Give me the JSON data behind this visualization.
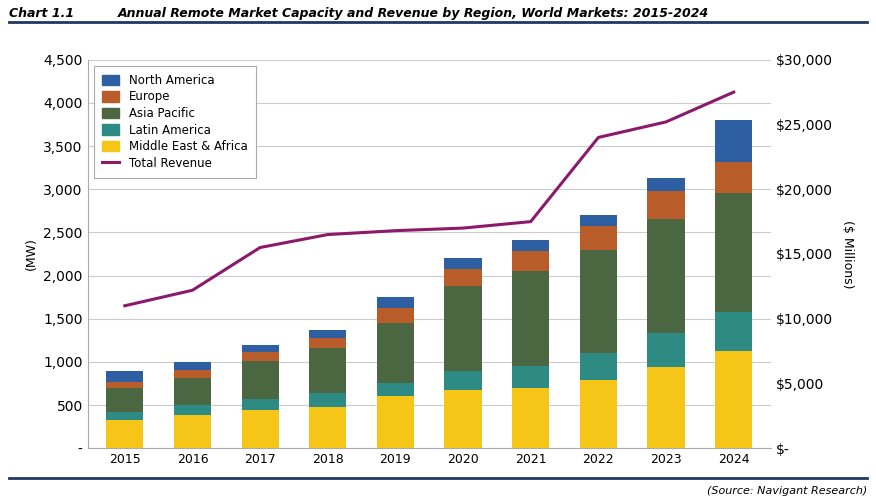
{
  "years": [
    2015,
    2016,
    2017,
    2018,
    2019,
    2020,
    2021,
    2022,
    2023,
    2024
  ],
  "middle_east_africa": [
    330,
    380,
    440,
    480,
    600,
    680,
    700,
    790,
    940,
    1130
  ],
  "latin_america": [
    95,
    115,
    135,
    155,
    155,
    220,
    250,
    310,
    390,
    450
  ],
  "asia_pacific": [
    270,
    320,
    430,
    530,
    700,
    980,
    1100,
    1200,
    1330,
    1380
  ],
  "europe": [
    75,
    90,
    105,
    115,
    165,
    200,
    230,
    270,
    320,
    360
  ],
  "north_america": [
    130,
    95,
    90,
    90,
    130,
    120,
    130,
    130,
    150,
    480
  ],
  "total_revenue": [
    11000,
    12200,
    15500,
    16500,
    16800,
    17000,
    17500,
    24000,
    25200,
    27500
  ],
  "colors": {
    "middle_east_africa": "#F5C518",
    "latin_america": "#2E8B84",
    "asia_pacific": "#4A6741",
    "europe": "#B85C2A",
    "north_america": "#2E5FA3",
    "total_revenue": "#8B1A6B"
  },
  "title_label": "Chart 1.1",
  "title_text": "Annual Remote Market Capacity and Revenue by Region, World Markets: 2015-2024",
  "ylabel_left": "(MW)",
  "ylabel_right": "($ Millions)",
  "ylim_left": [
    0,
    4500
  ],
  "ylim_right": [
    0,
    30000
  ],
  "yticks_left": [
    0,
    500,
    1000,
    1500,
    2000,
    2500,
    3000,
    3500,
    4000,
    4500
  ],
  "yticks_right": [
    0,
    5000,
    10000,
    15000,
    20000,
    25000,
    30000
  ],
  "source_text": "(Source: Navigant Research)"
}
